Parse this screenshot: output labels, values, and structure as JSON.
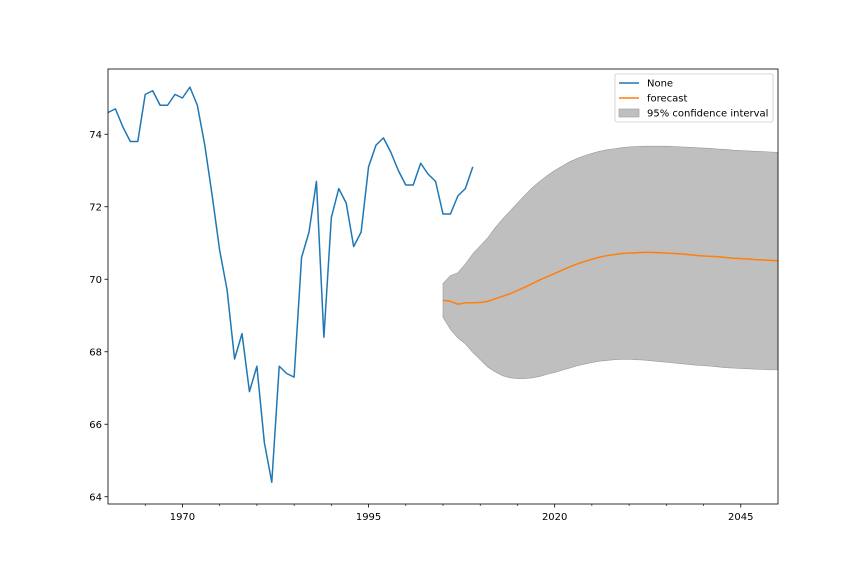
{
  "chart_data": {
    "type": "line",
    "title": "",
    "xlabel": "",
    "ylabel": "",
    "xlim": [
      1960,
      2050
    ],
    "ylim": [
      63.8,
      75.8
    ],
    "x_ticks": [
      1970,
      1995,
      2020,
      2045
    ],
    "y_ticks": [
      64,
      66,
      68,
      70,
      72,
      74
    ],
    "grid": false,
    "legend_position": "top-right",
    "colors": {
      "observed": "#1f77b4",
      "forecast": "#ff7f0e",
      "confidence": "#bfbfbf"
    },
    "legend": [
      {
        "label": "None",
        "kind": "line",
        "color": "#1f77b4"
      },
      {
        "label": "forecast",
        "kind": "line",
        "color": "#ff7f0e"
      },
      {
        "label": "95% confidence interval",
        "kind": "patch",
        "color": "#bfbfbf"
      }
    ],
    "series": [
      {
        "name": "None",
        "x": [
          1960,
          1961,
          1962,
          1963,
          1964,
          1965,
          1966,
          1967,
          1968,
          1969,
          1970,
          1971,
          1972,
          1973,
          1974,
          1975,
          1976,
          1977,
          1978,
          1979,
          1980,
          1981,
          1982,
          1983,
          1984,
          1985,
          1986,
          1987,
          1988,
          1989,
          1990,
          1991,
          1992,
          1993,
          1994,
          1995,
          1996,
          1997,
          1998,
          1999,
          2000,
          2001,
          2002,
          2003,
          2004,
          2005,
          2006,
          2007,
          2008,
          2009,
          2010
        ],
        "y": [
          74.6,
          74.7,
          74.2,
          73.8,
          73.8,
          75.1,
          75.2,
          74.8,
          74.8,
          75.1,
          75.0,
          75.3,
          74.8,
          73.7,
          72.3,
          70.8,
          69.7,
          67.8,
          68.5,
          66.9,
          67.6,
          65.5,
          64.4,
          67.6,
          67.4,
          67.3,
          70.6,
          71.3,
          72.7,
          68.4,
          71.7,
          72.5,
          72.1,
          70.9,
          71.3,
          73.1,
          73.7,
          73.9,
          73.5,
          73.0,
          72.6,
          72.6,
          73.2,
          72.9,
          72.7,
          71.8,
          71.8,
          72.3,
          72.5,
          73.1,
          null
        ]
      },
      {
        "name": "forecast",
        "x": [
          2005,
          2006,
          2007,
          2008,
          2009,
          2010,
          2011,
          2012,
          2013,
          2014,
          2015,
          2016,
          2017,
          2018,
          2019,
          2020,
          2021,
          2022,
          2023,
          2024,
          2025,
          2026,
          2027,
          2028,
          2029,
          2030,
          2031,
          2032,
          2033,
          2034,
          2035,
          2036,
          2037,
          2038,
          2039,
          2040,
          2041,
          2042,
          2043,
          2044,
          2045,
          2046,
          2047,
          2048,
          2049,
          2050
        ],
        "y": [
          69.42,
          69.39,
          69.31,
          69.35,
          69.35,
          69.36,
          69.39,
          69.46,
          69.53,
          69.6,
          69.69,
          69.78,
          69.88,
          69.98,
          70.07,
          70.16,
          70.25,
          70.34,
          70.42,
          70.49,
          70.55,
          70.61,
          70.65,
          70.68,
          70.71,
          70.72,
          70.73,
          70.74,
          70.74,
          70.73,
          70.72,
          70.71,
          70.7,
          70.68,
          70.66,
          70.64,
          70.63,
          70.62,
          70.6,
          70.58,
          70.57,
          70.56,
          70.54,
          70.53,
          70.52,
          70.51
        ]
      }
    ],
    "confidence_interval": {
      "label": "95% confidence interval",
      "x": [
        2005,
        2006,
        2007,
        2008,
        2009,
        2010,
        2011,
        2012,
        2013,
        2014,
        2015,
        2016,
        2017,
        2018,
        2019,
        2020,
        2021,
        2022,
        2023,
        2024,
        2025,
        2026,
        2027,
        2028,
        2029,
        2030,
        2031,
        2032,
        2033,
        2034,
        2035,
        2036,
        2037,
        2038,
        2039,
        2040,
        2041,
        2042,
        2043,
        2044,
        2045,
        2046,
        2047,
        2048,
        2049,
        2050
      ],
      "lower": [
        68.95,
        68.62,
        68.38,
        68.22,
        67.98,
        67.78,
        67.58,
        67.45,
        67.34,
        67.28,
        67.26,
        67.26,
        67.28,
        67.32,
        67.38,
        67.43,
        67.49,
        67.55,
        67.61,
        67.66,
        67.7,
        67.74,
        67.76,
        67.78,
        67.79,
        67.79,
        67.78,
        67.77,
        67.75,
        67.73,
        67.71,
        67.69,
        67.67,
        67.65,
        67.63,
        67.62,
        67.6,
        67.58,
        67.56,
        67.55,
        67.54,
        67.53,
        67.52,
        67.51,
        67.5,
        67.5
      ],
      "upper": [
        69.88,
        70.1,
        70.18,
        70.42,
        70.7,
        70.92,
        71.14,
        71.42,
        71.66,
        71.88,
        72.1,
        72.32,
        72.53,
        72.7,
        72.86,
        73.0,
        73.12,
        73.24,
        73.33,
        73.41,
        73.47,
        73.53,
        73.57,
        73.6,
        73.63,
        73.65,
        73.66,
        73.67,
        73.67,
        73.67,
        73.67,
        73.66,
        73.65,
        73.64,
        73.63,
        73.62,
        73.61,
        73.59,
        73.58,
        73.56,
        73.55,
        73.54,
        73.53,
        73.52,
        73.51,
        73.5
      ]
    }
  }
}
